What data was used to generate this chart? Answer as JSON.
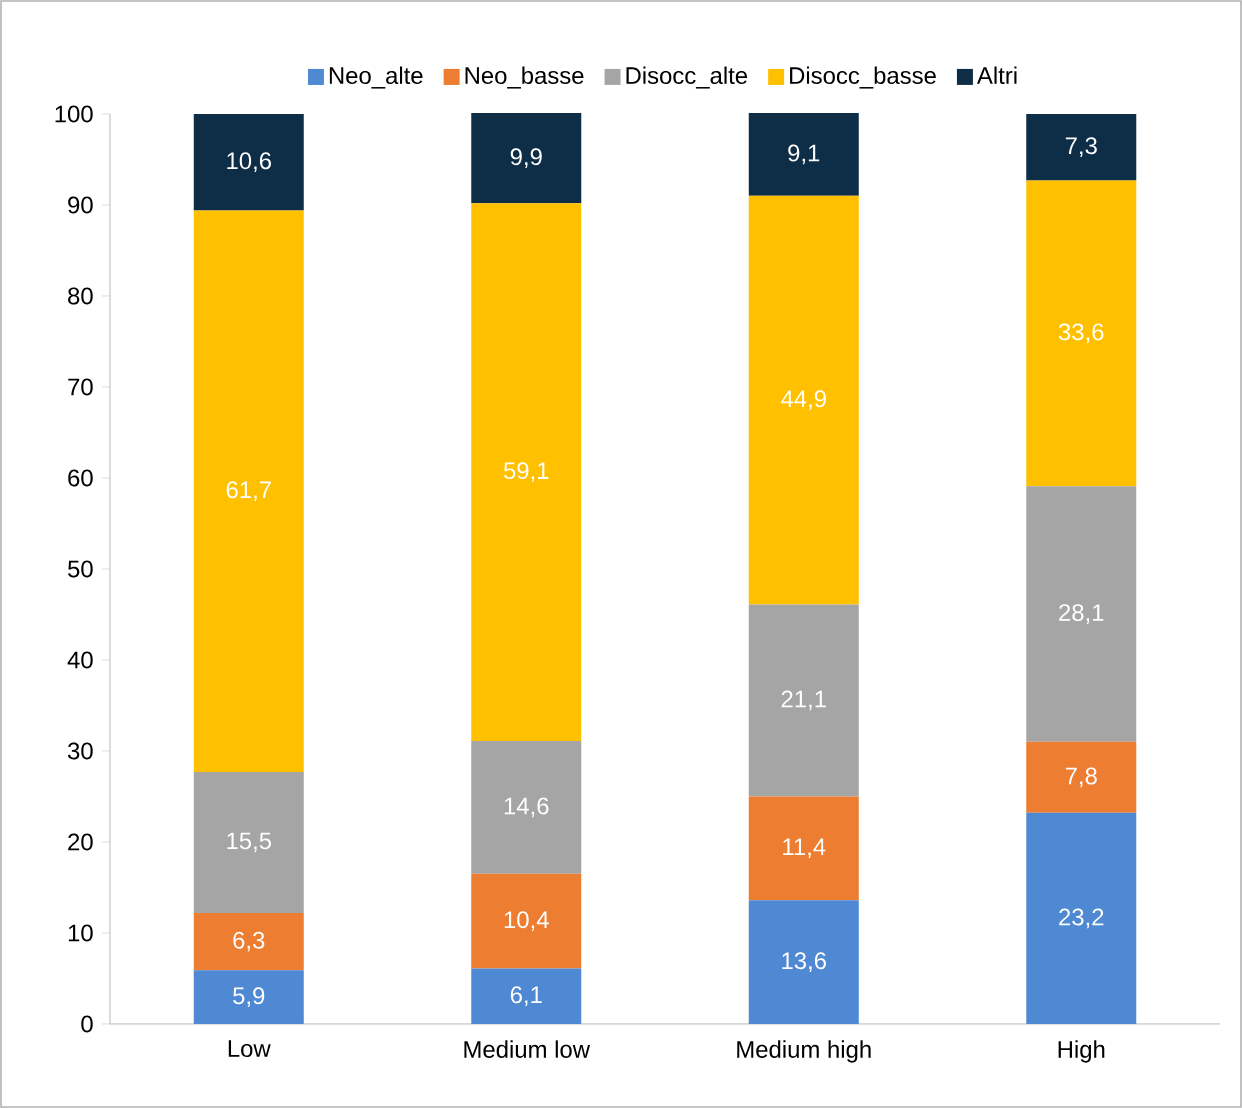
{
  "chart_data": {
    "type": "bar",
    "stacked": true,
    "categories": [
      "Low",
      "Medium low",
      "Medium high",
      "High"
    ],
    "series": [
      {
        "name": "Neo_alte",
        "color": "#4f88d3",
        "values": [
          5.9,
          6.1,
          13.6,
          23.2
        ],
        "value_labels": [
          "5,9",
          "6,1",
          "13,6",
          "23,2"
        ]
      },
      {
        "name": "Neo_basse",
        "color": "#ed7d31",
        "values": [
          6.3,
          10.4,
          11.4,
          7.8
        ],
        "value_labels": [
          "6,3",
          "10,4",
          "11,4",
          "7,8"
        ]
      },
      {
        "name": "Disocc_alte",
        "color": "#a5a5a5",
        "values": [
          15.5,
          14.6,
          21.1,
          28.1
        ],
        "value_labels": [
          "15,5",
          "14,6",
          "21,1",
          "28,1"
        ]
      },
      {
        "name": "Disocc_basse",
        "color": "#ffc000",
        "values": [
          61.7,
          59.1,
          44.9,
          33.6
        ],
        "value_labels": [
          "61,7",
          "59,1",
          "44,9",
          "33,6"
        ]
      },
      {
        "name": "Altri",
        "color": "#0e2d46",
        "values": [
          10.6,
          9.9,
          9.1,
          7.3
        ],
        "value_labels": [
          "10,6",
          "9,9",
          "9,1",
          "7,3"
        ]
      }
    ],
    "ylim": [
      0,
      100
    ],
    "yticks": [
      0,
      10,
      20,
      30,
      40,
      50,
      60,
      70,
      80,
      90,
      100
    ],
    "grid": false,
    "legend": "top"
  }
}
